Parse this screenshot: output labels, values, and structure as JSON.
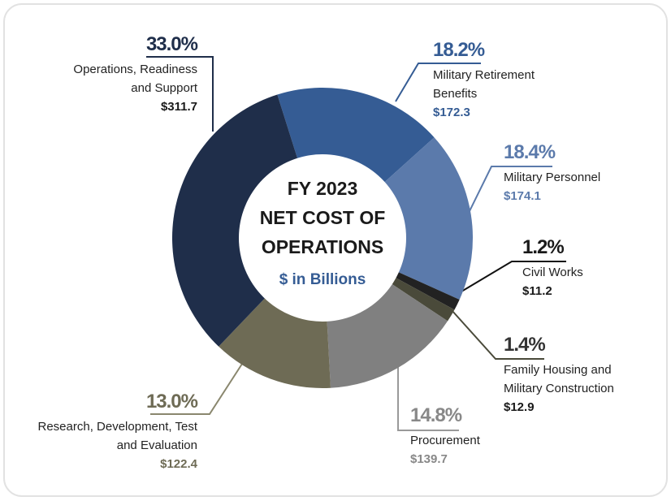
{
  "chart_data": {
    "type": "donut",
    "title": [
      "FY 2023",
      "NET COST OF",
      "OPERATIONS"
    ],
    "subtitle": "$ in Billions",
    "categories": [
      "Military Retirement Benefits",
      "Military Personnel",
      "Civil Works",
      "Family Housing and Military Construction",
      "Procurement",
      "Research, Development, Test and Evaluation",
      "Operations, Readiness and Support"
    ],
    "values": [
      18.2,
      18.4,
      1.2,
      1.4,
      14.8,
      13.0,
      33.0
    ],
    "value_labels": [
      "18.2%",
      "18.4%",
      "1.2%",
      "1.4%",
      "14.8%",
      "13.0%",
      "33.0%"
    ],
    "amounts": [
      172.3,
      174.1,
      11.2,
      12.9,
      139.7,
      122.4,
      311.7
    ],
    "amount_labels": [
      "$172.3",
      "$174.1",
      "$11.2",
      "$12.9",
      "$139.7",
      "$122.4",
      "$311.7"
    ],
    "colors": [
      "#355c94",
      "#5b7aab",
      "#222222",
      "#4a4a3a",
      "#808080",
      "#6e6b55",
      "#1f2e4a"
    ]
  }
}
